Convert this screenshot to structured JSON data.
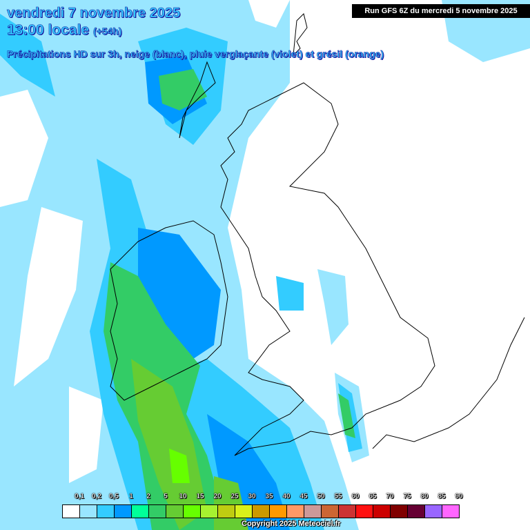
{
  "header": {
    "date": "vendredi 7 novembre 2025",
    "time": "13:00 locale",
    "offset": "(+54h)",
    "subtitle": "Précipitations HD sur 3h, neige (blanc), pluie verglaçante (violet) et grésil (orange)",
    "run": "Run GFS 6Z du mercredi 5 novembre 2025"
  },
  "legend": {
    "labels": [
      "0,1",
      "0,2",
      "0,5",
      "1",
      "2",
      "5",
      "10",
      "15",
      "20",
      "25",
      "30",
      "35",
      "40",
      "45",
      "50",
      "55",
      "60",
      "65",
      "70",
      "75",
      "80",
      "85",
      "90"
    ],
    "colors": [
      "#ffffff",
      "#99e6ff",
      "#33ccff",
      "#0099ff",
      "#00ff99",
      "#33cc66",
      "#66cc33",
      "#66ff00",
      "#a6f230",
      "#bfcc11",
      "#d9f01a",
      "#cc9900",
      "#ff9900",
      "#ff9966",
      "#cc9999",
      "#cc6633",
      "#cc3333",
      "#ff1111",
      "#cc0000",
      "#800000",
      "#660033",
      "#9966ff",
      "#ff66ff"
    ]
  },
  "copyright": "Copyright 2025 Meteociel.fr"
}
